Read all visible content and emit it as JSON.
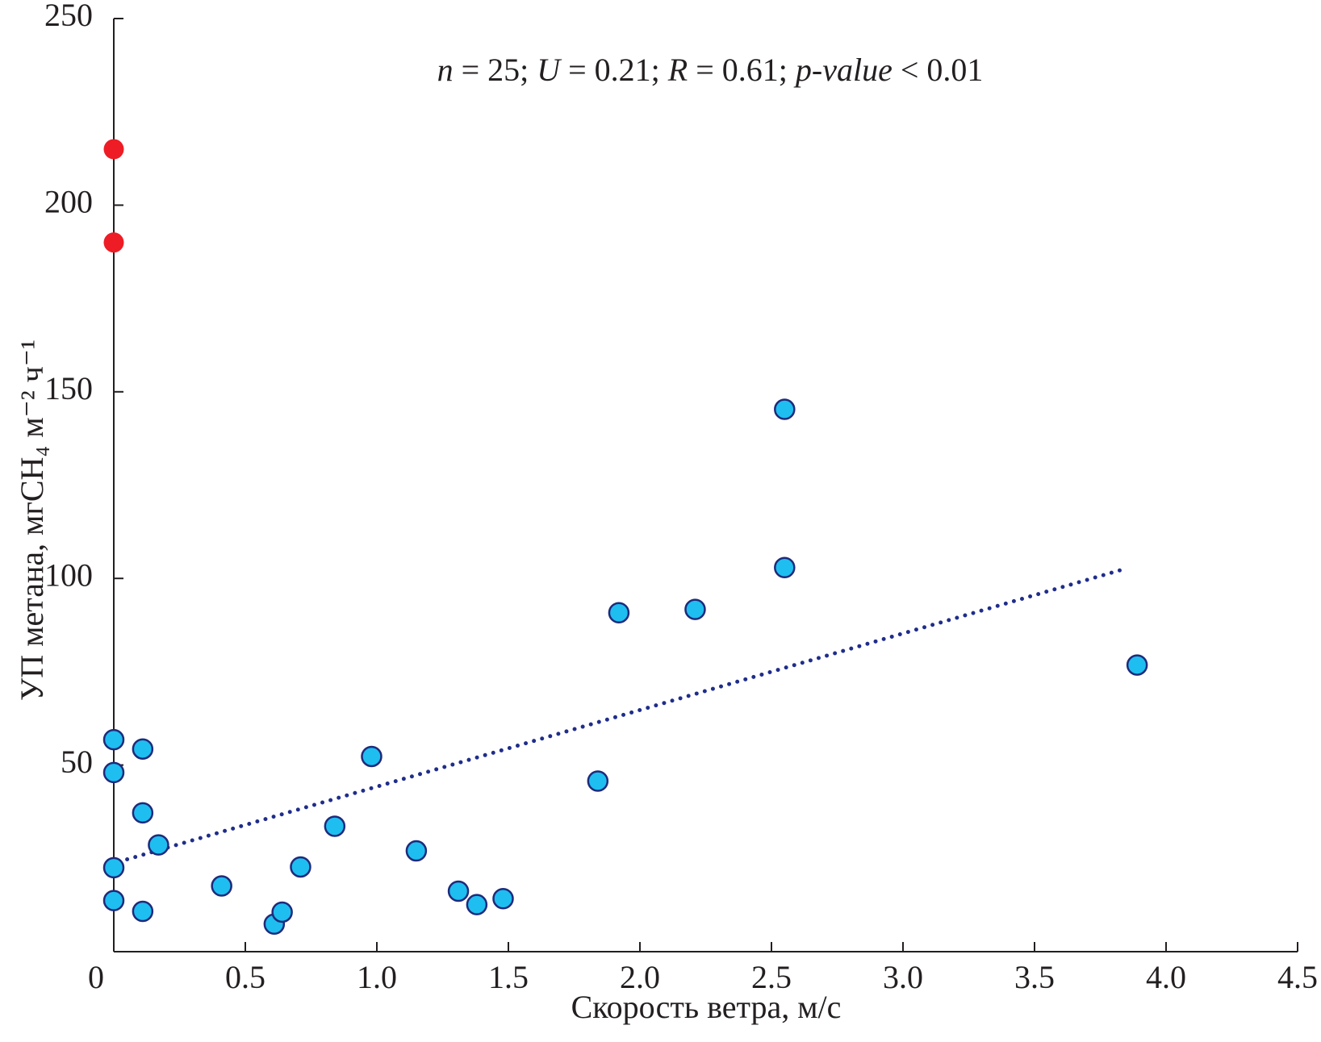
{
  "chart_data": {
    "type": "scatter",
    "annotation": [
      {
        "text": "n",
        "italic": true
      },
      {
        "text": " = 25; ",
        "italic": false
      },
      {
        "text": "U",
        "italic": true
      },
      {
        "text": " = 0.21; ",
        "italic": false
      },
      {
        "text": "R",
        "italic": true
      },
      {
        "text": " = 0.61; ",
        "italic": false
      },
      {
        "text": "p-value",
        "italic": true
      },
      {
        "text": " < 0.01",
        "italic": false
      }
    ],
    "x_label": "Скорость ветра, м/с",
    "y_label": "УП метана, мгCH₄ м⁻² ч⁻¹",
    "xlim": [
      0,
      4.5
    ],
    "ylim": [
      0,
      250
    ],
    "xticks": [
      0,
      0.5,
      {
        "value": 1,
        "label": "1.0"
      },
      1.5,
      {
        "value": 2,
        "label": "2.0"
      },
      2.5,
      {
        "value": 3,
        "label": "3.0"
      },
      3.5,
      {
        "value": 4,
        "label": "4.0"
      },
      4.5
    ],
    "yticks": [
      50,
      100,
      150,
      200,
      250
    ],
    "series": [
      {
        "color": "#1ebef0",
        "edge_color": "#1f2a7a",
        "x": [
          0,
          0,
          0.11,
          0.11,
          0.17,
          0,
          0,
          0.11,
          0.41,
          0.61,
          0.64,
          0.71,
          0.84,
          0.98,
          1.15,
          1.31,
          1.38,
          1.48,
          1.84,
          1.92,
          2.21,
          2.55,
          2.55,
          3.89
        ],
        "values": [
          56.8,
          48,
          54.3,
          37.2,
          28.6,
          22.5,
          13.7,
          10.8,
          17.6,
          7.4,
          10.6,
          22.7,
          33.6,
          52.3,
          27,
          16.2,
          12.6,
          14.2,
          45.7,
          90.8,
          91.7,
          145.3,
          102.9,
          76.8
        ]
      },
      {
        "color": "#ee1c25",
        "x": [
          0,
          0
        ],
        "values": [
          215,
          190
        ]
      }
    ],
    "trendline": {
      "color": "#1f2d8a",
      "x": [
        0.02,
        3.85
      ],
      "values": [
        24.1,
        102.7
      ]
    }
  }
}
